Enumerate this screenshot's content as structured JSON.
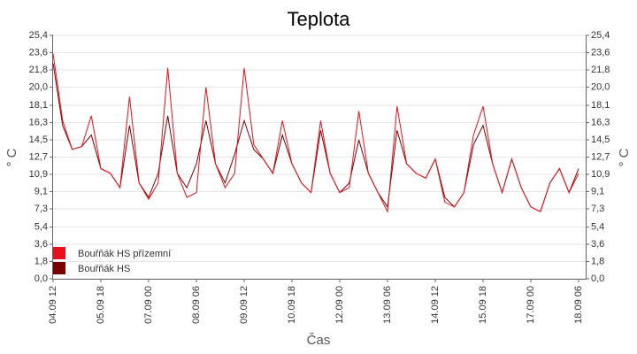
{
  "chart_data": {
    "type": "line",
    "title": "Teplota",
    "xlabel": "Čas",
    "ylabel": "° C",
    "x": [
      "04.09 12",
      "04.09 18",
      "05.09 00",
      "05.09 06",
      "05.09 12",
      "05.09 18",
      "06.09 00",
      "06.09 06",
      "06.09 12",
      "06.09 18",
      "07.09 00",
      "07.09 06",
      "07.09 12",
      "07.09 18",
      "08.09 00",
      "08.09 06",
      "08.09 12",
      "08.09 18",
      "09.09 00",
      "09.09 06",
      "09.09 12",
      "09.09 18",
      "10.09 00",
      "10.09 06",
      "10.09 12",
      "10.09 18",
      "11.09 00",
      "11.09 06",
      "11.09 12",
      "11.09 18",
      "12.09 00",
      "12.09 06",
      "12.09 12",
      "12.09 18",
      "13.09 00",
      "13.09 06",
      "13.09 12",
      "13.09 18",
      "14.09 00",
      "14.09 06",
      "14.09 12",
      "14.09 18",
      "15.09 00",
      "15.09 06",
      "15.09 12",
      "15.09 18",
      "16.09 00",
      "16.09 06",
      "16.09 12",
      "16.09 18",
      "17.09 00",
      "17.09 06",
      "17.09 12",
      "17.09 18",
      "18.09 00",
      "18.09 06"
    ],
    "xticks": [
      "04.09 12",
      "05.09 18",
      "07.09 00",
      "08.09 06",
      "09.09 12",
      "10.09 18",
      "12.09 00",
      "13.09 06",
      "14.09 12",
      "15.09 18",
      "17.09 00",
      "18.09 06"
    ],
    "series": [
      {
        "name": "Bouřňák HS přízemní",
        "color": "#e8101a",
        "values": [
          23.5,
          16.5,
          13.5,
          13.8,
          17,
          11.5,
          11,
          9.5,
          19,
          10,
          8.3,
          10,
          22,
          11,
          8.5,
          9,
          20,
          12,
          9.5,
          11,
          22,
          14,
          12.5,
          11,
          16.5,
          12,
          10,
          9,
          16.5,
          11,
          9,
          9.5,
          17.5,
          11,
          9,
          7,
          18,
          12,
          11,
          10.5,
          12.5,
          8,
          7.5,
          9,
          15,
          18,
          12,
          9,
          12.5,
          9.5,
          7.5,
          7,
          10,
          11.5,
          9,
          11
        ]
      },
      {
        "name": "Bouřňák HS",
        "color": "#7a0000",
        "values": [
          22.5,
          16,
          13.5,
          13.8,
          15,
          11.5,
          11,
          9.5,
          16,
          10,
          8.5,
          11,
          17,
          11,
          9.5,
          12,
          16.5,
          12,
          10,
          13,
          16.5,
          13.5,
          12.5,
          11,
          15,
          12,
          10,
          9,
          15.5,
          11,
          9,
          10,
          14.5,
          11,
          9,
          7.5,
          15.5,
          12,
          11,
          10.5,
          12.5,
          8.5,
          7.5,
          9,
          14,
          16,
          12,
          9,
          12.5,
          9.5,
          7.5,
          7,
          10,
          11.5,
          9,
          11.5
        ]
      }
    ],
    "ylim": [
      0,
      25.4
    ],
    "yticks": [
      {
        "value": 0,
        "label": "0,0"
      },
      {
        "value": 1.8,
        "label": "1,8"
      },
      {
        "value": 3.6,
        "label": "3,6"
      },
      {
        "value": 5.4,
        "label": "5,4"
      },
      {
        "value": 7.3,
        "label": "7,3"
      },
      {
        "value": 9.1,
        "label": "9,1"
      },
      {
        "value": 10.9,
        "label": "10,9"
      },
      {
        "value": 12.7,
        "label": "12,7"
      },
      {
        "value": 14.5,
        "label": "14,5"
      },
      {
        "value": 16.3,
        "label": "16,3"
      },
      {
        "value": 18.1,
        "label": "18,1"
      },
      {
        "value": 20.0,
        "label": "20,0"
      },
      {
        "value": 21.8,
        "label": "21,8"
      },
      {
        "value": 23.6,
        "label": "23,6"
      },
      {
        "value": 25.4,
        "label": "25,4"
      }
    ],
    "grid": true
  }
}
